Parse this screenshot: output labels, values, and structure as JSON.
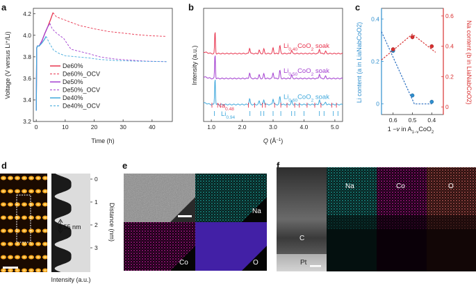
{
  "colors": {
    "de60": "#e8344e",
    "de50": "#a33fd0",
    "de40": "#3fa8dc",
    "li_axis": "#2f8fcf",
    "na_axis": "#d93030",
    "fit_blue": "#2a6fc0",
    "fit_red": "#d93030",
    "na_map": "#1aa7a0",
    "co_map": "#c0199a",
    "o_map_e": "#4a24b8",
    "o_map_f": "#c4605c"
  },
  "chart_data": [
    {
      "panel": "a",
      "type": "line",
      "xlabel": "Time (h)",
      "ylabel": "Voltage (V versus Li⁺/Li)",
      "xlim": [
        -1,
        47
      ],
      "ylim": [
        3.2,
        4.25
      ],
      "xticks": [
        "0",
        "10",
        "20",
        "30",
        "40"
      ],
      "yticks": [
        "3.2",
        "3.4",
        "3.6",
        "3.8",
        "4.0",
        "4.2"
      ],
      "legend": [
        "De60%",
        "De60%_OCV",
        "De50%",
        "De50%_OCV",
        "De40%",
        "De40%_OCV"
      ],
      "series": [
        {
          "name": "De60%",
          "color_key": "de60",
          "dashed": false,
          "x": [
            0,
            0.15,
            0.4,
            1,
            2,
            3,
            4,
            5,
            5.8
          ],
          "y": [
            3.3,
            3.88,
            3.9,
            3.9,
            3.95,
            4.02,
            4.08,
            4.15,
            4.21
          ]
        },
        {
          "name": "De60%_OCV",
          "color_key": "de60",
          "dashed": true,
          "x": [
            5.8,
            7,
            9,
            12,
            15,
            20,
            25,
            30,
            35,
            40,
            45
          ],
          "y": [
            4.21,
            4.17,
            4.15,
            4.12,
            4.09,
            4.06,
            4.035,
            4.02,
            4.005,
            3.995,
            3.99
          ]
        },
        {
          "name": "De50%",
          "color_key": "de50",
          "dashed": false,
          "x": [
            0,
            0.15,
            0.4,
            1,
            2,
            3,
            4,
            4.7
          ],
          "y": [
            3.3,
            3.88,
            3.9,
            3.9,
            3.95,
            4.02,
            4.08,
            4.11
          ]
        },
        {
          "name": "De50%_OCV",
          "color_key": "de50",
          "dashed": true,
          "x": [
            4.7,
            5.5,
            7,
            8.5,
            9.5,
            10.5,
            12,
            15,
            18,
            22,
            27,
            32,
            38,
            45
          ],
          "y": [
            4.11,
            4.06,
            4.02,
            3.99,
            3.97,
            3.93,
            3.87,
            3.85,
            3.83,
            3.8,
            3.78,
            3.77,
            3.76,
            3.755
          ]
        },
        {
          "name": "De40%",
          "color_key": "de40",
          "dashed": false,
          "x": [
            0,
            0.15,
            0.4,
            1,
            2,
            2.8,
            3.4
          ],
          "y": [
            3.3,
            3.88,
            3.9,
            3.9,
            3.93,
            3.96,
            3.99
          ]
        },
        {
          "name": "De40%_OCV",
          "color_key": "de40",
          "dashed": true,
          "x": [
            3.4,
            4.5,
            6,
            8,
            10,
            14,
            18,
            22,
            28,
            35,
            45
          ],
          "y": [
            3.99,
            3.93,
            3.86,
            3.83,
            3.81,
            3.8,
            3.79,
            3.775,
            3.765,
            3.76,
            3.755
          ]
        }
      ]
    },
    {
      "panel": "b",
      "type": "line",
      "xlabel": "Q (Å⁻¹)",
      "ylabel": "Intensity (a.u.)",
      "xlim": [
        0.75,
        5.25
      ],
      "xticks": [
        "1.0",
        "2.0",
        "3.0",
        "4.0",
        "5.0"
      ],
      "series": [
        {
          "name": "Li0.40CoO2 soak",
          "color_key": "de60",
          "baseline": 0.6,
          "peaks": [
            [
              1.12,
              0.2
            ],
            [
              2.24,
              0.05
            ],
            [
              2.55,
              0.03
            ],
            [
              2.7,
              0.04
            ],
            [
              3.0,
              0.05
            ],
            [
              3.22,
              0.07
            ],
            [
              3.6,
              0.03
            ],
            [
              4.5,
              0.04
            ],
            [
              4.7,
              0.02
            ]
          ]
        },
        {
          "name": "Li0.50CoO2 soak",
          "color_key": "de50",
          "baseline": 0.38,
          "peaks": [
            [
              1.12,
              0.22
            ],
            [
              2.24,
              0.05
            ],
            [
              2.55,
              0.03
            ],
            [
              2.7,
              0.04
            ],
            [
              3.0,
              0.05
            ],
            [
              3.22,
              0.07
            ],
            [
              3.6,
              0.03
            ],
            [
              4.5,
              0.04
            ],
            [
              4.7,
              0.02
            ]
          ]
        },
        {
          "name": "Li0.60CoO2 soak",
          "color_key": "de40",
          "baseline": 0.15,
          "peaks": [
            [
              1.12,
              0.24
            ],
            [
              2.24,
              0.05
            ],
            [
              2.55,
              0.03
            ],
            [
              2.7,
              0.04
            ],
            [
              3.0,
              0.05
            ],
            [
              3.22,
              0.07
            ],
            [
              3.6,
              0.03
            ],
            [
              4.5,
              0.04
            ],
            [
              4.7,
              0.02
            ]
          ]
        }
      ],
      "labels": [
        {
          "text": "Li",
          "sub": "0.40",
          "rest": "CoO",
          "sub2": "2",
          "tail": " soak",
          "color_key": "de60"
        },
        {
          "text": "Li",
          "sub": "0.50",
          "rest": "CoO",
          "sub2": "2",
          "tail": " soak",
          "color_key": "de50"
        },
        {
          "text": "Li",
          "sub": "0.60",
          "rest": "CoO",
          "sub2": "2",
          "tail": " soak",
          "color_key": "de40"
        }
      ],
      "reference_ticks": [
        {
          "name": "Na0.48",
          "color_key": "de60",
          "positions": [
            1.02,
            2.2,
            2.4,
            2.65,
            2.75,
            3.05,
            3.25,
            3.45,
            3.7,
            3.85,
            4.1,
            4.35,
            4.55,
            4.9,
            5.05
          ]
        },
        {
          "name": "Li0.94",
          "color_key": "de40",
          "positions": [
            1.1,
            2.25,
            2.6,
            2.7,
            3.0,
            3.25,
            3.6,
            3.7,
            4.0,
            4.5,
            4.65,
            4.95,
            5.1
          ]
        }
      ],
      "ref_labels": [
        {
          "text": "Na",
          "sub": "0.48",
          "color_key": "de60"
        },
        {
          "text": "Li",
          "sub": "0.94",
          "color_key": "de40"
        }
      ]
    },
    {
      "panel": "c",
      "type": "scatter",
      "xlabel": "1 −v in A1−vCoO2",
      "xlabel_parts": {
        "pre": "1 −",
        "v": "v",
        "mid": " in A",
        "sub": "1−v",
        "post": "CoO",
        "sub2": "2"
      },
      "y_left_label": "Li content (a in LiaNabCoO2)",
      "y_right_label": "Na content (b in LiaNabCoO2)",
      "xlim": [
        0.66,
        0.34
      ],
      "xticks": [
        "0.6",
        "0.5",
        "0.4"
      ],
      "y_left_ticks": [
        "0",
        "0.2",
        "0.4"
      ],
      "y_right_ticks": [
        "0",
        "0.2",
        "0.4",
        "0.6"
      ],
      "y_left_lim": [
        -0.05,
        0.45
      ],
      "y_right_lim": [
        -0.05,
        0.65
      ],
      "li_points": {
        "x": [
          0.6,
          0.5,
          0.4
        ],
        "y": [
          0.25,
          0.04,
          0.01
        ]
      },
      "na_points": {
        "x": [
          0.6,
          0.5,
          0.4
        ],
        "y": [
          0.38,
          0.46,
          0.4
        ]
      },
      "li_fit": {
        "x": [
          0.66,
          0.49,
          0.4
        ],
        "y": [
          0.34,
          0.0,
          0.0
        ]
      },
      "na_fit": {
        "x": [
          0.66,
          0.5,
          0.38
        ],
        "y": [
          0.31,
          0.48,
          0.36
        ]
      }
    },
    {
      "panel": "d",
      "type": "line",
      "xlabel": "Intensity (a.u.)",
      "ylabel": "Distance (nm)",
      "yticks": [
        "0",
        "1",
        "2",
        "3"
      ],
      "annotation": "0.55 nm"
    }
  ],
  "panels": {
    "a": "a",
    "b": "b",
    "c": "c",
    "d": "d",
    "e": "e",
    "f": "f"
  },
  "maps_e": {
    "na": "Na",
    "co": "Co",
    "o": "O"
  },
  "maps_f": {
    "na": "Na",
    "co": "Co",
    "o": "O",
    "c": "C",
    "pt": "Pt"
  }
}
